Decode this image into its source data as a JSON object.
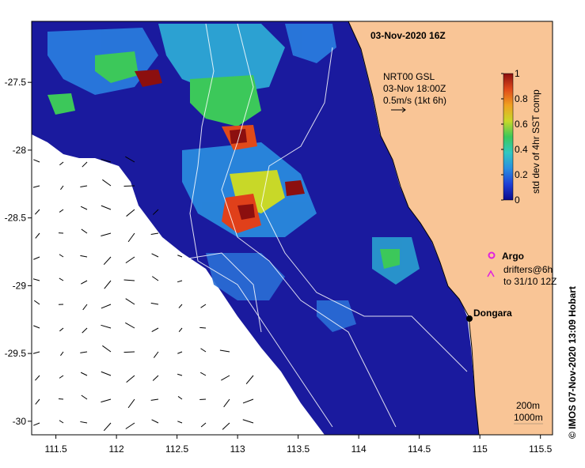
{
  "map": {
    "title": "03-Nov-2020 16Z",
    "x_ticks": [
      "111.5",
      "112",
      "112.5",
      "113",
      "113.5",
      "114",
      "114.5",
      "115",
      "115.5"
    ],
    "x_tick_values": [
      111.5,
      112,
      112.5,
      113,
      113.5,
      114,
      114.5,
      115,
      115.5
    ],
    "y_ticks": [
      "-27.5",
      "-28",
      "-28.5",
      "-29",
      "-29.5",
      "-30"
    ],
    "y_tick_values": [
      -27.5,
      -28,
      -28.5,
      -29,
      -29.5,
      -30
    ],
    "lon_range": [
      111.3,
      115.6
    ],
    "lat_range": [
      -30.1,
      -27.05
    ],
    "current_legend": {
      "line1": "NRT00 GSL",
      "line2": "03-Nov 18:00Z",
      "line3": "0.5m/s (1kt 6h)"
    },
    "colorbar": {
      "ticks": [
        "1",
        "0.8",
        "0.6",
        "0.4",
        "0.2",
        "0"
      ],
      "tick_values": [
        1,
        0.8,
        0.6,
        0.4,
        0.2,
        0
      ],
      "label": "std dev of 4hr SST comp",
      "colors": [
        "#0a0a8c",
        "#1f3fd6",
        "#2a8fe0",
        "#30c8c0",
        "#3cc85a",
        "#c8d828",
        "#f0a020",
        "#e04a1a",
        "#8c0f0f"
      ]
    },
    "argo_label": "Argo",
    "drifters_line1": "drifters@6h",
    "drifters_line2": "to 31/10 12Z",
    "place_label": "Dongara",
    "depth_labels": [
      "200m",
      "1000m"
    ],
    "credit": "© IMOS 07-Nov-2020 13:09 Hobart",
    "colors": {
      "land": "#f9c596",
      "ocean_deep": "#1a1aa0",
      "coast": "#000000",
      "argo": "#e020e0"
    }
  }
}
